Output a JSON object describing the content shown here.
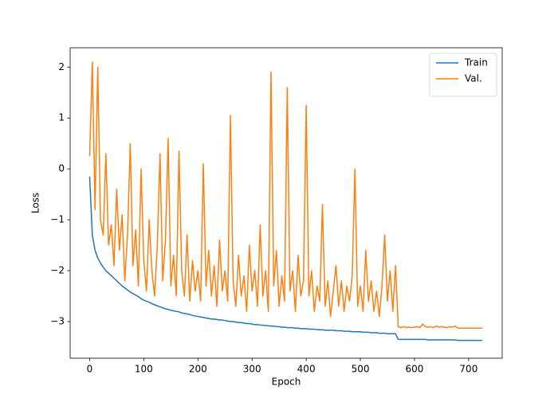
{
  "chart_data": {
    "type": "line",
    "xlabel": "Epoch",
    "ylabel": "Loss",
    "x": [
      0,
      5,
      10,
      15,
      20,
      25,
      30,
      35,
      40,
      45,
      50,
      55,
      60,
      65,
      70,
      75,
      80,
      85,
      90,
      95,
      100,
      105,
      110,
      115,
      120,
      125,
      130,
      135,
      140,
      145,
      150,
      155,
      160,
      165,
      170,
      175,
      180,
      185,
      190,
      195,
      200,
      205,
      210,
      215,
      220,
      225,
      230,
      235,
      240,
      245,
      250,
      255,
      260,
      265,
      270,
      275,
      280,
      285,
      290,
      295,
      300,
      305,
      310,
      315,
      320,
      325,
      330,
      335,
      340,
      345,
      350,
      355,
      360,
      365,
      370,
      375,
      380,
      385,
      390,
      395,
      400,
      405,
      410,
      415,
      420,
      425,
      430,
      435,
      440,
      445,
      450,
      455,
      460,
      465,
      470,
      475,
      480,
      485,
      490,
      495,
      500,
      505,
      510,
      515,
      520,
      525,
      530,
      535,
      540,
      545,
      550,
      555,
      560,
      565,
      570,
      575,
      580,
      585,
      590,
      595,
      600,
      605,
      610,
      615,
      620,
      625,
      630,
      635,
      640,
      645,
      650,
      655,
      660,
      665,
      670,
      675,
      680,
      685,
      690,
      695,
      700,
      705,
      710,
      715,
      720,
      725
    ],
    "series": [
      {
        "name": "Train",
        "color": "#1f77b4",
        "values": [
          -0.15,
          -1.3,
          -1.6,
          -1.75,
          -1.85,
          -1.93,
          -2.0,
          -2.05,
          -2.1,
          -2.15,
          -2.2,
          -2.25,
          -2.3,
          -2.34,
          -2.38,
          -2.42,
          -2.45,
          -2.48,
          -2.51,
          -2.55,
          -2.58,
          -2.6,
          -2.62,
          -2.65,
          -2.67,
          -2.69,
          -2.71,
          -2.73,
          -2.75,
          -2.76,
          -2.78,
          -2.79,
          -2.8,
          -2.81,
          -2.83,
          -2.84,
          -2.85,
          -2.86,
          -2.88,
          -2.89,
          -2.9,
          -2.91,
          -2.92,
          -2.93,
          -2.94,
          -2.95,
          -2.95,
          -2.96,
          -2.97,
          -2.97,
          -2.98,
          -2.99,
          -3.0,
          -3.0,
          -3.01,
          -3.02,
          -3.02,
          -3.03,
          -3.04,
          -3.04,
          -3.05,
          -3.06,
          -3.06,
          -3.07,
          -3.07,
          -3.08,
          -3.08,
          -3.09,
          -3.09,
          -3.1,
          -3.1,
          -3.11,
          -3.11,
          -3.12,
          -3.12,
          -3.12,
          -3.13,
          -3.13,
          -3.14,
          -3.14,
          -3.14,
          -3.15,
          -3.15,
          -3.15,
          -3.16,
          -3.16,
          -3.16,
          -3.17,
          -3.17,
          -3.17,
          -3.17,
          -3.18,
          -3.18,
          -3.18,
          -3.19,
          -3.19,
          -3.19,
          -3.2,
          -3.2,
          -3.2,
          -3.2,
          -3.21,
          -3.21,
          -3.21,
          -3.22,
          -3.22,
          -3.22,
          -3.23,
          -3.23,
          -3.23,
          -3.24,
          -3.24,
          -3.24,
          -3.24,
          -3.35,
          -3.35,
          -3.35,
          -3.35,
          -3.35,
          -3.35,
          -3.35,
          -3.35,
          -3.35,
          -3.35,
          -3.35,
          -3.36,
          -3.36,
          -3.36,
          -3.36,
          -3.36,
          -3.36,
          -3.36,
          -3.36,
          -3.36,
          -3.36,
          -3.36,
          -3.37,
          -3.37,
          -3.37,
          -3.37,
          -3.37,
          -3.37,
          -3.37,
          -3.37,
          -3.37,
          -3.37
        ]
      },
      {
        "name": "Val.",
        "color": "#ff7f0e",
        "values": [
          0.25,
          2.1,
          -0.8,
          2.0,
          -1.0,
          -1.3,
          0.3,
          -1.5,
          -1.1,
          -1.9,
          -0.4,
          -1.6,
          -0.9,
          -2.2,
          -1.3,
          0.5,
          -1.9,
          -1.2,
          -2.3,
          0.0,
          -1.8,
          -2.4,
          -1.0,
          -2.0,
          -2.5,
          -1.5,
          0.3,
          -2.2,
          -1.4,
          0.6,
          -2.3,
          -1.7,
          -2.5,
          0.35,
          -2.0,
          -2.5,
          -1.3,
          -2.6,
          -1.8,
          -2.4,
          -2.0,
          -2.6,
          0.1,
          -2.3,
          -1.6,
          -2.5,
          -1.9,
          -2.7,
          -1.4,
          -2.4,
          -2.0,
          -2.6,
          1.05,
          -2.2,
          -2.7,
          -1.7,
          -2.5,
          -2.1,
          -2.8,
          -1.5,
          -2.4,
          -2.0,
          -2.7,
          -1.1,
          -2.5,
          -2.0,
          -2.8,
          1.9,
          -2.3,
          -1.6,
          -2.7,
          -2.1,
          -2.6,
          1.6,
          -2.4,
          -2.0,
          -2.8,
          -1.7,
          -2.5,
          -2.2,
          1.25,
          -2.5,
          -2.0,
          -2.8,
          -2.3,
          -2.6,
          -0.7,
          -2.7,
          -2.2,
          -2.9,
          -2.4,
          -1.9,
          -2.7,
          -2.2,
          -2.8,
          -2.3,
          -2.6,
          -2.1,
          0.0,
          -2.7,
          -2.3,
          -2.8,
          -1.6,
          -2.6,
          -2.2,
          -2.8,
          -2.4,
          -2.9,
          -2.3,
          -1.3,
          -2.6,
          -2.0,
          -2.8,
          -1.9,
          -3.1,
          -3.12,
          -3.1,
          -3.12,
          -3.11,
          -3.12,
          -3.11,
          -3.1,
          -3.12,
          -3.05,
          -3.1,
          -3.11,
          -3.1,
          -3.12,
          -3.09,
          -3.11,
          -3.1,
          -3.11,
          -3.12,
          -3.1,
          -3.11,
          -3.09,
          -3.13,
          -3.13,
          -3.13,
          -3.13,
          -3.13,
          -3.13,
          -3.13,
          -3.13,
          -3.13,
          -3.13
        ]
      }
    ],
    "xlim": [
      -36,
      762
    ],
    "xticks": [
      0,
      100,
      200,
      300,
      400,
      500,
      600,
      700
    ],
    "ylim": [
      -3.72,
      2.38
    ],
    "yticks": [
      {
        "value": -3,
        "label": "−3"
      },
      {
        "value": -2,
        "label": "−2"
      },
      {
        "value": -1,
        "label": "−1"
      },
      0,
      1,
      2
    ],
    "legend": "upper right"
  }
}
